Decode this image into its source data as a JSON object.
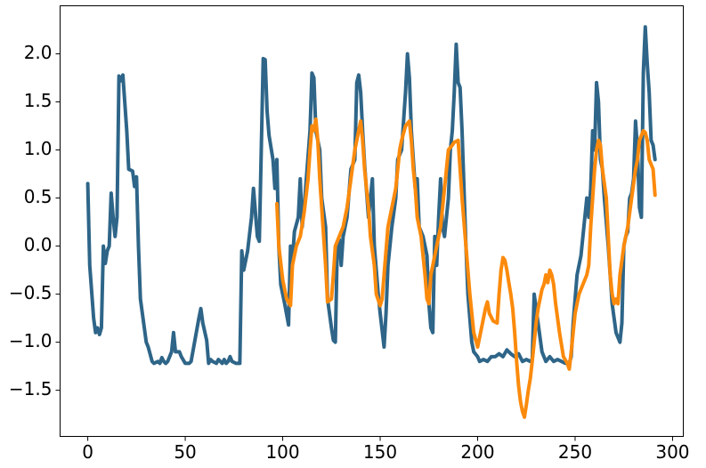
{
  "chart_data": {
    "type": "line",
    "xlim": [
      -14.2,
      305.5
    ],
    "ylim": [
      -1.98,
      2.5
    ],
    "xticks": [
      0,
      50,
      100,
      150,
      200,
      250,
      300
    ],
    "yticks": [
      {
        "value": -1.5,
        "label": "−1.5"
      },
      {
        "value": -1.0,
        "label": "−1.0"
      },
      {
        "value": -0.5,
        "label": "−0.5"
      },
      {
        "value": 0,
        "label": "0.0"
      },
      0.5,
      {
        "value": 1.0,
        "label": "1.0"
      },
      1.5,
      {
        "value": 2.0,
        "label": "2.0"
      }
    ],
    "series": [
      {
        "color": "#2e6588",
        "x": [
          0,
          1,
          3,
          4,
          5,
          6,
          7,
          8,
          9,
          10,
          11,
          12,
          13,
          14,
          15,
          16,
          17,
          18,
          20,
          21,
          23,
          24,
          25,
          26,
          27,
          29,
          30,
          31,
          33,
          34,
          36,
          37,
          38,
          39,
          40,
          41,
          43,
          44,
          45,
          47,
          48,
          50,
          52,
          53,
          57,
          58,
          59,
          61,
          62,
          63,
          64,
          66,
          67,
          68,
          69,
          70,
          71,
          72,
          73,
          74,
          76,
          78,
          79,
          80,
          82,
          84,
          85,
          86,
          87,
          88,
          89,
          90,
          91,
          92,
          93,
          95,
          96,
          97,
          98,
          99,
          101,
          103,
          104,
          105,
          106,
          108,
          109,
          110,
          111,
          114,
          115,
          116,
          117,
          118,
          119,
          120,
          122,
          123,
          125,
          126,
          127,
          128,
          129,
          130,
          131,
          133,
          135,
          137,
          138,
          139,
          140,
          141,
          142,
          144,
          146,
          147,
          149,
          150,
          152,
          153,
          154,
          155,
          156,
          158,
          159,
          161,
          163,
          164,
          165,
          166,
          168,
          169,
          170,
          172,
          174,
          175,
          176,
          177,
          178,
          179,
          180,
          181,
          182,
          183,
          185,
          186,
          187,
          188,
          189,
          190,
          191,
          192,
          194,
          195,
          196,
          197,
          198,
          200,
          201,
          203,
          205,
          207,
          209,
          211,
          213,
          215,
          217,
          219,
          221,
          223,
          225,
          227,
          228,
          229,
          231,
          233,
          235,
          237,
          239,
          241,
          243,
          245,
          247,
          248,
          249,
          251,
          253,
          254,
          256,
          257,
          258,
          259,
          260,
          261,
          262,
          263,
          264,
          265,
          267,
          269,
          271,
          273,
          274,
          275,
          276,
          277,
          278,
          279,
          280,
          281,
          282,
          283,
          284,
          285,
          286,
          287,
          288,
          289,
          290,
          291
        ],
        "values": [
          0.65,
          -0.2,
          -0.75,
          -0.9,
          -0.85,
          -0.92,
          -0.85,
          0.0,
          -0.18,
          -0.05,
          0.0,
          0.55,
          0.3,
          0.1,
          0.3,
          1.77,
          1.72,
          1.78,
          1.2,
          0.8,
          0.78,
          0.62,
          0.72,
          0.0,
          -0.55,
          -0.85,
          -1.0,
          -1.05,
          -1.2,
          -1.22,
          -1.2,
          -1.22,
          -1.16,
          -1.2,
          -1.22,
          -1.2,
          -1.1,
          -0.9,
          -1.1,
          -1.1,
          -1.15,
          -1.22,
          -1.22,
          -1.2,
          -0.75,
          -0.65,
          -0.8,
          -0.98,
          -1.22,
          -1.18,
          -1.2,
          -1.22,
          -1.18,
          -1.2,
          -1.22,
          -1.18,
          -1.22,
          -1.2,
          -1.15,
          -1.2,
          -1.22,
          -1.22,
          -0.05,
          -0.25,
          -0.05,
          0.3,
          0.6,
          0.35,
          0.1,
          0.05,
          1.0,
          1.95,
          1.94,
          1.4,
          1.15,
          0.9,
          0.6,
          0.9,
          0.0,
          -0.4,
          -0.6,
          -0.82,
          0.0,
          -0.15,
          0.15,
          0.3,
          0.7,
          0.2,
          0.4,
          1.2,
          1.8,
          1.75,
          1.2,
          1.1,
          1.0,
          0.5,
          0.2,
          -0.55,
          -0.85,
          -0.98,
          -1.0,
          0.0,
          0.07,
          -0.2,
          0.1,
          0.3,
          0.8,
          0.9,
          1.7,
          1.78,
          1.6,
          1.2,
          0.85,
          0.3,
          0.7,
          0.0,
          -0.5,
          -0.7,
          -1.05,
          -0.7,
          -0.2,
          0.0,
          0.2,
          0.5,
          0.9,
          1.0,
          1.6,
          2.0,
          1.75,
          1.2,
          0.6,
          0.7,
          0.2,
          0.1,
          -0.1,
          -0.6,
          -0.85,
          -0.9,
          0.1,
          -0.2,
          0.3,
          0.7,
          0.2,
          0.1,
          0.5,
          1.0,
          1.2,
          1.6,
          2.1,
          1.7,
          1.65,
          1.2,
          0.0,
          -0.5,
          -0.75,
          -1.0,
          -1.1,
          -1.15,
          -1.2,
          -1.18,
          -1.2,
          -1.15,
          -1.15,
          -1.12,
          -1.15,
          -1.08,
          -1.12,
          -1.15,
          -1.12,
          -1.2,
          -1.18,
          -1.2,
          -1.18,
          -0.5,
          -0.8,
          -1.1,
          -1.2,
          -1.15,
          -1.2,
          -1.18,
          -1.2,
          -1.22,
          -1.22,
          -1.15,
          -0.8,
          -0.3,
          -0.1,
          0.1,
          0.5,
          0.3,
          0.6,
          1.2,
          1.0,
          1.7,
          1.5,
          0.9,
          0.8,
          0.5,
          0.0,
          -0.6,
          -0.9,
          -1.0,
          -0.8,
          0.0,
          0.1,
          0.15,
          0.5,
          0.55,
          0.7,
          1.3,
          1.0,
          0.4,
          0.3,
          1.8,
          2.28,
          1.9,
          1.6,
          1.1,
          1.05,
          0.9
        ]
      },
      {
        "color": "#fb8a0c",
        "x": [
          97,
          98,
          100,
          102,
          104,
          105,
          107,
          109,
          111,
          113,
          114,
          115,
          116,
          117,
          118,
          119,
          120,
          122,
          123,
          125,
          126,
          127,
          129,
          131,
          133,
          135,
          137,
          139,
          140,
          141,
          142,
          144,
          145,
          147,
          148,
          150,
          151,
          152,
          154,
          156,
          158,
          160,
          161,
          163,
          165,
          166,
          167,
          168,
          169,
          171,
          173,
          174,
          175,
          176,
          177,
          179,
          181,
          183,
          184,
          185,
          187,
          188,
          190,
          191,
          192,
          194,
          196,
          198,
          200,
          202,
          204,
          205,
          206,
          208,
          210,
          211,
          212,
          213,
          214,
          215,
          216,
          217,
          218,
          219,
          220,
          221,
          222,
          223,
          224,
          225,
          226,
          227,
          228,
          229,
          230,
          231,
          232,
          233,
          234,
          235,
          236,
          237,
          238,
          239,
          240,
          242,
          244,
          246,
          247,
          248,
          250,
          252,
          254,
          256,
          257,
          258,
          259,
          260,
          261,
          262,
          263,
          264,
          265,
          266,
          267,
          268,
          269,
          270,
          271,
          272,
          273,
          275,
          277,
          279,
          281,
          282,
          283,
          284,
          285,
          286,
          287,
          288,
          289,
          290,
          291
        ],
        "values": [
          0.44,
          0.0,
          -0.35,
          -0.55,
          -0.62,
          -0.2,
          0.0,
          0.1,
          0.35,
          0.7,
          1.0,
          1.25,
          1.2,
          1.32,
          1.1,
          0.7,
          0.4,
          -0.2,
          -0.58,
          -0.55,
          -0.3,
          0.0,
          0.1,
          0.2,
          0.4,
          0.7,
          1.0,
          1.2,
          1.3,
          1.1,
          0.8,
          0.4,
          0.1,
          -0.2,
          -0.5,
          -0.62,
          -0.55,
          -0.3,
          0.2,
          0.4,
          0.6,
          1.0,
          1.1,
          1.25,
          1.3,
          1.1,
          0.8,
          0.6,
          0.3,
          0.1,
          -0.3,
          -0.55,
          -0.6,
          -0.3,
          -0.2,
          0.0,
          0.2,
          0.6,
          0.8,
          1.0,
          1.05,
          1.08,
          1.1,
          0.8,
          0.5,
          0.0,
          -0.5,
          -0.9,
          -1.05,
          -0.85,
          -0.65,
          -0.58,
          -0.7,
          -0.78,
          -0.8,
          -0.5,
          -0.25,
          -0.12,
          -0.15,
          -0.25,
          -0.38,
          -0.5,
          -0.65,
          -0.9,
          -1.2,
          -1.45,
          -1.62,
          -1.72,
          -1.78,
          -1.65,
          -1.5,
          -1.38,
          -1.2,
          -1.0,
          -0.8,
          -0.65,
          -0.55,
          -0.45,
          -0.4,
          -0.3,
          -0.38,
          -0.25,
          -0.3,
          -0.4,
          -0.6,
          -0.9,
          -1.15,
          -1.22,
          -1.28,
          -1.1,
          -0.7,
          -0.5,
          -0.4,
          -0.3,
          -0.2,
          0.2,
          0.5,
          0.8,
          1.0,
          1.1,
          1.05,
          0.8,
          0.65,
          0.5,
          0.1,
          -0.3,
          -0.5,
          -0.6,
          -0.55,
          -0.6,
          -0.3,
          0.0,
          0.2,
          0.5,
          0.8,
          0.9,
          1.1,
          1.15,
          1.2,
          1.18,
          1.1,
          0.9,
          0.85,
          0.8,
          0.53
        ]
      }
    ]
  }
}
